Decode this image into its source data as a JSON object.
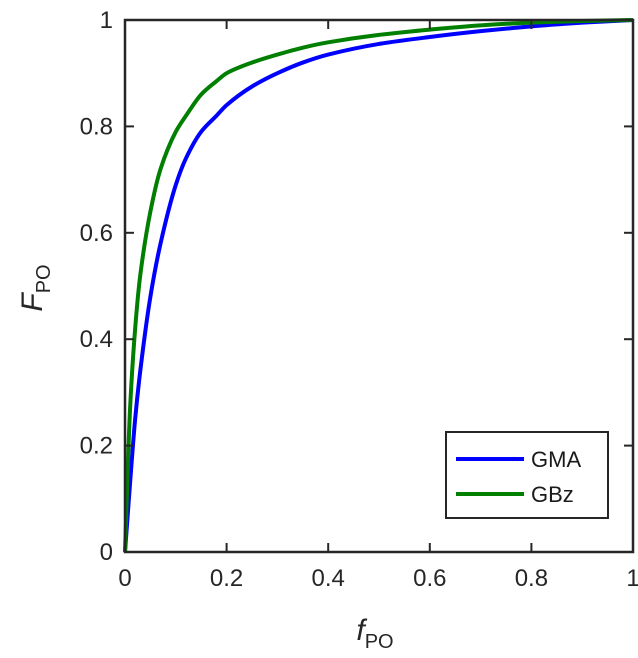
{
  "chart_data": {
    "type": "line",
    "xlabel": {
      "main": "f",
      "sub": "PO"
    },
    "ylabel": {
      "main": "F",
      "sub": "PO"
    },
    "xlim": [
      0,
      1
    ],
    "ylim": [
      0,
      1
    ],
    "xticks": [
      0,
      0.2,
      0.4,
      0.6,
      0.8,
      1
    ],
    "xtick_labels": [
      "0",
      "0.2",
      "0.4",
      "0.6",
      "0.8",
      "1"
    ],
    "yticks": [
      0,
      0.2,
      0.4,
      0.6,
      0.8,
      1
    ],
    "ytick_labels": [
      "0",
      "0.2",
      "0.4",
      "0.6",
      "0.8",
      "1"
    ],
    "grid": false,
    "legend_position": "bottom-right",
    "series": [
      {
        "name": "GMA",
        "color": "#0000ff",
        "x": [
          0,
          0.01,
          0.02,
          0.03,
          0.05,
          0.07,
          0.1,
          0.12,
          0.15,
          0.18,
          0.2,
          0.25,
          0.3,
          0.35,
          0.4,
          0.5,
          0.6,
          0.7,
          0.8,
          0.9,
          1.0
        ],
        "y": [
          0,
          0.13,
          0.25,
          0.34,
          0.48,
          0.58,
          0.69,
          0.74,
          0.79,
          0.82,
          0.84,
          0.875,
          0.9,
          0.92,
          0.935,
          0.955,
          0.968,
          0.979,
          0.988,
          0.995,
          1.0
        ]
      },
      {
        "name": "GBz",
        "color": "#007f00",
        "x": [
          0,
          0.01,
          0.02,
          0.03,
          0.05,
          0.07,
          0.1,
          0.12,
          0.15,
          0.18,
          0.2,
          0.25,
          0.3,
          0.35,
          0.4,
          0.5,
          0.6,
          0.7,
          0.8,
          0.9,
          1.0
        ],
        "y": [
          0,
          0.27,
          0.42,
          0.52,
          0.64,
          0.72,
          0.79,
          0.82,
          0.86,
          0.885,
          0.9,
          0.92,
          0.935,
          0.948,
          0.958,
          0.972,
          0.982,
          0.99,
          0.995,
          0.998,
          1.0
        ]
      }
    ]
  }
}
